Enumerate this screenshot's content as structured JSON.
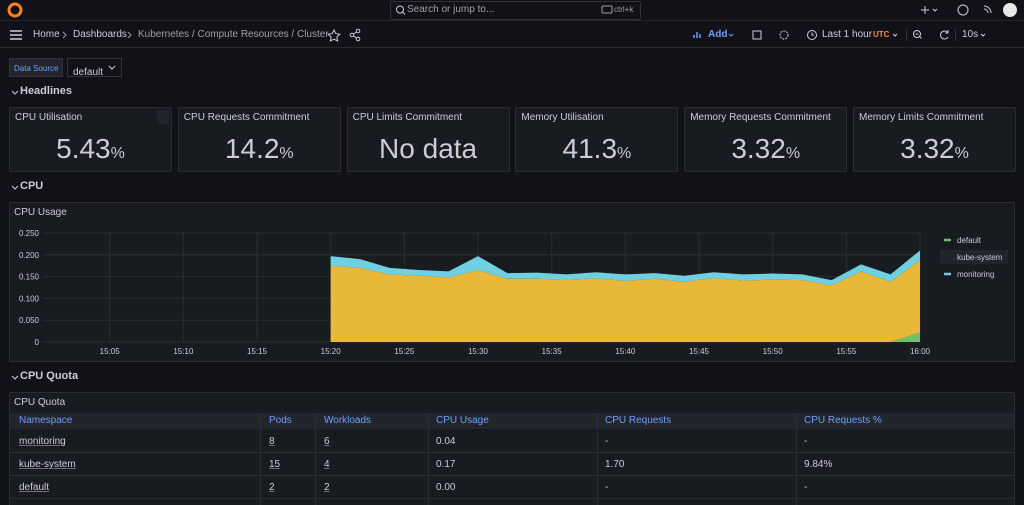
{
  "topbar": {
    "search_placeholder": "Search or jump to...",
    "shortcut": "ctrl+k"
  },
  "breadcrumbs": [
    "Home",
    "Dashboards",
    "Kubernetes / Compute Resources / Cluster"
  ],
  "toolbar": {
    "add": "Add",
    "time_range": "Last 1 hour",
    "timezone": "UTC",
    "refresh_interval": "10s"
  },
  "variables": [
    {
      "label": "Data Source",
      "value": "default"
    }
  ],
  "rows": [
    "Headlines",
    "CPU",
    "CPU Quota"
  ],
  "stats": [
    {
      "title": "CPU Utilisation",
      "value": "5.43",
      "unit": "%"
    },
    {
      "title": "CPU Requests Commitment",
      "value": "14.2",
      "unit": "%"
    },
    {
      "title": "CPU Limits Commitment",
      "value": "No data"
    },
    {
      "title": "Memory Utilisation",
      "value": "41.3",
      "unit": "%"
    },
    {
      "title": "Memory Requests Commitment",
      "value": "3.32",
      "unit": "%"
    },
    {
      "title": "Memory Limits Commitment",
      "value": "3.32",
      "unit": "%"
    }
  ],
  "chart_data": {
    "type": "stacked-area",
    "title": "CPU Usage",
    "x": [
      "15:20",
      "15:22",
      "15:24",
      "15:26",
      "15:28",
      "15:30",
      "15:32",
      "15:34",
      "15:36",
      "15:38",
      "15:40",
      "15:42",
      "15:44",
      "15:46",
      "15:48",
      "15:50",
      "15:52",
      "15:54",
      "15:56",
      "15:58",
      "16:00"
    ],
    "series": [
      {
        "name": "default",
        "color": "#73bf69",
        "values": [
          0,
          0,
          0,
          0,
          0,
          0,
          0,
          0,
          0,
          0,
          0,
          0,
          0,
          0,
          0,
          0,
          0,
          0,
          0,
          0,
          0.022
        ]
      },
      {
        "name": "kube-system",
        "color": "#eab839",
        "values": [
          0.175,
          0.17,
          0.155,
          0.152,
          0.148,
          0.165,
          0.145,
          0.145,
          0.143,
          0.146,
          0.14,
          0.145,
          0.138,
          0.147,
          0.141,
          0.143,
          0.142,
          0.13,
          0.162,
          0.138,
          0.166
        ]
      },
      {
        "name": "monitoring",
        "color": "#6ed0e0",
        "values": [
          0.022,
          0.02,
          0.015,
          0.013,
          0.014,
          0.032,
          0.013,
          0.014,
          0.012,
          0.014,
          0.015,
          0.013,
          0.014,
          0.013,
          0.014,
          0.014,
          0.013,
          0.012,
          0.016,
          0.017,
          0.022
        ]
      }
    ],
    "xlim": [
      "15:00",
      "16:00"
    ],
    "xticks": [
      "15:05",
      "15:10",
      "15:15",
      "15:20",
      "15:25",
      "15:30",
      "15:35",
      "15:40",
      "15:45",
      "15:50",
      "15:55",
      "16:00"
    ],
    "ylim": [
      0,
      0.25
    ],
    "yticks": [
      0,
      {
        "value": 0.05,
        "label": "0.050"
      },
      {
        "value": 0.1,
        "label": "0.100"
      },
      {
        "value": 0.15,
        "label": "0.150"
      },
      {
        "value": 0.2,
        "label": "0.200"
      },
      {
        "value": 0.25,
        "label": "0.250"
      }
    ],
    "grid": true,
    "legend": "right"
  },
  "table": {
    "title": "CPU Quota",
    "columns": [
      "Namespace",
      "Pods",
      "Workloads",
      "CPU Usage",
      "CPU Requests",
      "CPU Requests %"
    ],
    "rows": [
      [
        "monitoring",
        "8",
        "6",
        "0.04",
        "-",
        "-"
      ],
      [
        "kube-system",
        "15",
        "4",
        "0.17",
        "1.70",
        "9.84%"
      ],
      [
        "default",
        "2",
        "2",
        "0.00",
        "-",
        "-"
      ]
    ]
  }
}
